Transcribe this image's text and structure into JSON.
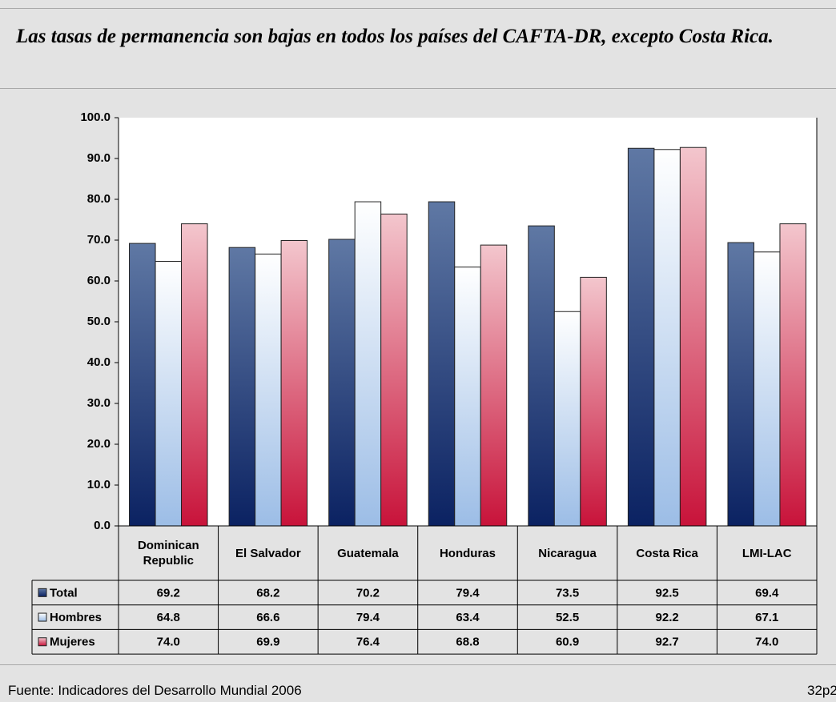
{
  "chart_data": {
    "type": "bar",
    "title": "Las tasas de permanencia son bajas en todos los países del CAFTA-DR, excepto Costa Rica.",
    "source": "Fuente: Indicadores del Desarrollo Mundial 2006",
    "slide_number": "32p2",
    "categories": [
      "Dominican Republic",
      "El Salvador",
      "Guatemala",
      "Honduras",
      "Nicaragua",
      "Costa Rica",
      "LMI-LAC"
    ],
    "series": [
      {
        "name": "Total",
        "color": "#0b2262",
        "color_top": "#5f78a4",
        "values": [
          69.2,
          68.2,
          70.2,
          79.4,
          73.5,
          92.5,
          69.4
        ],
        "value_labels": [
          "69.2",
          "68.2",
          "70.2",
          "79.4",
          "73.5",
          "92.5",
          "69.4"
        ]
      },
      {
        "name": "Hombres",
        "color": "#9cbde6",
        "color_top": "#ffffff",
        "values": [
          64.8,
          66.6,
          79.4,
          63.4,
          52.5,
          92.2,
          67.1
        ],
        "value_labels": [
          "64.8",
          "66.6",
          "79.4",
          "63.4",
          "52.5",
          "92.2",
          "67.1"
        ]
      },
      {
        "name": "Mujeres",
        "color": "#c8133a",
        "color_top": "#f3c6cd",
        "values": [
          74.0,
          69.9,
          76.4,
          68.8,
          60.9,
          92.7,
          74.0
        ],
        "value_labels": [
          "74.0",
          "69.9",
          "76.4",
          "68.8",
          "60.9",
          "92.7",
          "74.0"
        ]
      }
    ],
    "ylim": [
      0,
      100
    ],
    "yticks": [
      {
        "value": 0,
        "label": "0.0"
      },
      {
        "value": 10,
        "label": "10.0"
      },
      {
        "value": 20,
        "label": "20.0"
      },
      {
        "value": 30,
        "label": "30.0"
      },
      {
        "value": 40,
        "label": "40.0"
      },
      {
        "value": 50,
        "label": "50.0"
      },
      {
        "value": 60,
        "label": "60.0"
      },
      {
        "value": 70,
        "label": "70.0"
      },
      {
        "value": 80,
        "label": "80.0"
      },
      {
        "value": 90,
        "label": "90.0"
      },
      {
        "value": 100,
        "label": "100.0"
      }
    ],
    "grid": false,
    "data_table": true
  }
}
